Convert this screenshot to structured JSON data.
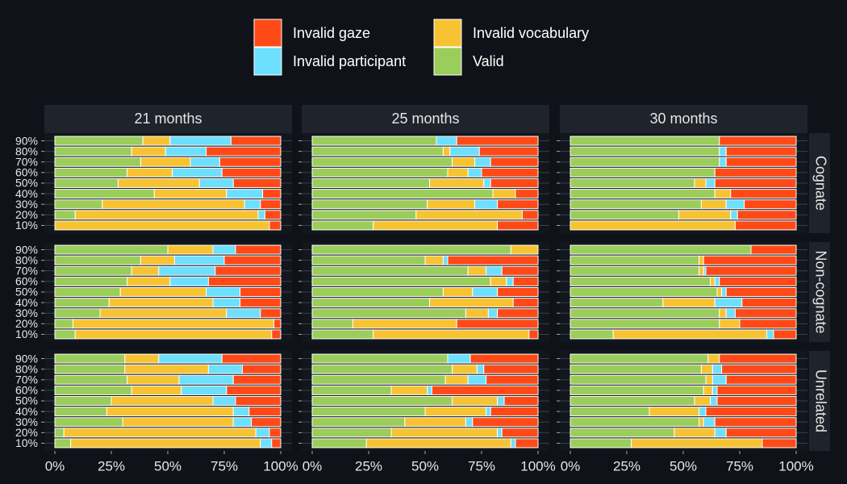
{
  "chart_data": {
    "type": "bar",
    "orientation": "horizontal",
    "stacked": true,
    "columns": [
      "21 months",
      "25 months",
      "30 months"
    ],
    "rows": [
      "Cognate",
      "Non-cognate",
      "Unrelated"
    ],
    "categories": [
      "90%",
      "80%",
      "70%",
      "60%",
      "50%",
      "40%",
      "30%",
      "20%",
      "10%"
    ],
    "xlim": [
      0,
      100
    ],
    "xticks": [
      {
        "value": 0,
        "label": "0%"
      },
      {
        "value": 25,
        "label": "25%"
      },
      {
        "value": 50,
        "label": "50%"
      },
      {
        "value": 75,
        "label": "75%"
      },
      {
        "value": 100,
        "label": "100%"
      }
    ],
    "grid": true,
    "series": [
      {
        "name": "Invalid gaze",
        "color": "#ff4a17",
        "values": [
          [
            [
              22,
              33,
              27,
              26,
              21,
              8,
              9,
              7,
              5
            ],
            [
              36,
              26,
              21,
              25,
              21,
              10,
              18,
              7,
              18
            ],
            [
              34,
              31,
              31,
              36,
              36,
              29,
              23,
              26,
              27
            ]
          ],
          [
            [
              20,
              25,
              29,
              32,
              18,
              18,
              9,
              3,
              4
            ],
            [
              0,
              40,
              16,
              11,
              18,
              11,
              18,
              36,
              4
            ],
            [
              20,
              41,
              40,
              34,
              31,
              24,
              27,
              25,
              10
            ]
          ],
          [
            [
              26,
              17,
              21,
              24,
              20,
              14,
              13,
              5,
              4
            ],
            [
              30,
              24,
              23,
              47,
              15,
              21,
              29,
              16,
              10
            ],
            [
              34,
              33,
              31,
              35,
              35,
              40,
              36,
              31,
              15
            ]
          ]
        ]
      },
      {
        "name": "Invalid participant",
        "color": "#6ddfff",
        "values": [
          [
            [
              27,
              18,
              13,
              22,
              15,
              16,
              7,
              3,
              0
            ],
            [
              9,
              13,
              7,
              6,
              3,
              0,
              10,
              0,
              0
            ],
            [
              0,
              3,
              3,
              0,
              4,
              0,
              8,
              3,
              0
            ]
          ],
          [
            [
              10,
              22,
              25,
              17,
              15,
              12,
              15,
              0,
              0
            ],
            [
              0,
              2,
              7,
              3,
              11,
              0,
              4,
              0,
              0
            ],
            [
              0,
              0,
              1,
              2,
              2,
              12,
              4,
              0,
              3
            ]
          ],
          [
            [
              28,
              15,
              24,
              20,
              10,
              7,
              8,
              6,
              5
            ],
            [
              10,
              3,
              8,
              2,
              3,
              2,
              3,
              2,
              2
            ],
            [
              0,
              4,
              6,
              2,
              3,
              3,
              5,
              5,
              0
            ]
          ]
        ]
      },
      {
        "name": "Invalid vocabulary",
        "color": "#f8c332",
        "values": [
          [
            [
              12,
              15,
              22,
              20,
              36,
              32,
              63,
              81,
              95
            ],
            [
              0,
              3,
              10,
              9,
              24,
              10,
              21,
              47,
              55
            ],
            [
              0,
              0,
              0,
              0,
              5,
              7,
              11,
              23,
              73
            ]
          ],
          [
            [
              20,
              15,
              12,
              19,
              38,
              46,
              56,
              89,
              87
            ],
            [
              12,
              8,
              8,
              7,
              13,
              37,
              10,
              46,
              69
            ],
            [
              0,
              2,
              2,
              2,
              2,
              23,
              3,
              9,
              68
            ]
          ],
          [
            [
              15,
              37,
              23,
              22,
              45,
              56,
              49,
              85,
              84
            ],
            [
              0,
              11,
              10,
              16,
              20,
              27,
              27,
              47,
              64
            ],
            [
              5,
              5,
              3,
              4,
              7,
              22,
              2,
              18,
              58
            ]
          ]
        ]
      },
      {
        "name": "Valid",
        "color": "#9bcd5a",
        "values": [
          [
            [
              39,
              34,
              38,
              32,
              28,
              44,
              21,
              9,
              0
            ],
            [
              55,
              58,
              62,
              60,
              52,
              80,
              51,
              46,
              27
            ],
            [
              66,
              66,
              66,
              64,
              55,
              64,
              58,
              48,
              0
            ]
          ],
          [
            [
              50,
              38,
              34,
              32,
              29,
              24,
              20,
              8,
              9
            ],
            [
              88,
              50,
              69,
              79,
              58,
              52,
              68,
              18,
              27
            ],
            [
              80,
              57,
              57,
              62,
              65,
              41,
              66,
              66,
              19
            ]
          ],
          [
            [
              31,
              31,
              32,
              34,
              25,
              23,
              30,
              4,
              7
            ],
            [
              60,
              62,
              59,
              35,
              62,
              50,
              41,
              35,
              24
            ],
            [
              61,
              58,
              60,
              59,
              55,
              35,
              57,
              46,
              27
            ]
          ]
        ]
      }
    ]
  }
}
